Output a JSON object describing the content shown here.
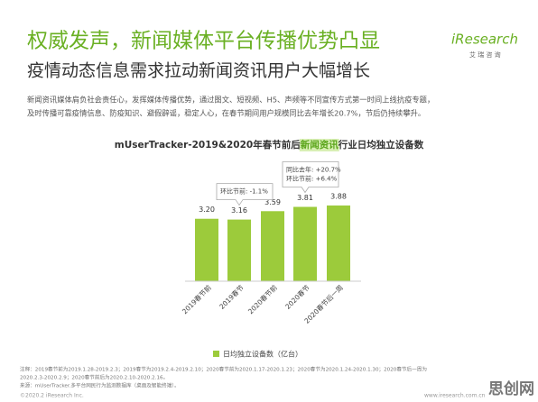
{
  "slide_title": "权威发声，新闻媒体平台传播优势凸显",
  "slide_subtitle": "疫情动态信息需求拉动新闻资讯用户大幅增长",
  "logo": {
    "name": "iResearch",
    "tagline": "艾 瑞 咨 询"
  },
  "body": [
    "新闻资讯媒体肩负社会责任心，发挥媒体传播优势，通过图文、短视频、H5、声频等不同宣传方式第一时间上线抗疫专题，",
    "及时传播可靠疫情信息、防疫知识、避假辟谣，稳定人心，在春节期间用户规模同比去年增长20.7%，节后仍持续攀升。"
  ],
  "chart_data": {
    "type": "bar",
    "title": [
      "mUserTracker-2019&2020年春节前后",
      "新闻资讯",
      "行业日均独立设备数"
    ],
    "categories": [
      "2019春节前",
      "2019春节",
      "2020春节前",
      "2020春节",
      "2020春节后一周"
    ],
    "series": [
      {
        "name": "日均独立设备数（亿台）",
        "color": "#9ccb3b",
        "values": [
          3.2,
          3.16,
          3.59,
          3.81,
          3.88
        ],
        "value_labels": [
          "3.20",
          "3.16",
          "3.59",
          "3.81",
          "3.88"
        ]
      }
    ],
    "annotations": [
      {
        "category": 1,
        "lines": [
          "环比节前: -1.1%"
        ]
      },
      {
        "category": 3,
        "lines": [
          "同比去年: +20.7%",
          "环比节前: +6.4%"
        ]
      }
    ]
  },
  "notes": [
    "注释：2019春节前为2019.1.28-2019.2.3；2019春节为2019.2.4-2019.2.10；2020春节前为2020.1.17-2020.1.23；2020春节为2020.1.24-2020.1.30；2020春节后一周为",
    "2020.2.3-2020.2.9；2020春节前后为2020.2.10-2020.2.16。",
    "来源：mUserTracker.多平台网民行为监测数据库（桌面及智能终端）。"
  ],
  "footer": {
    "copyright": "©2020.2 iResearch Inc.",
    "website": "www.iresearch.com.cn"
  },
  "watermark": "思创网"
}
